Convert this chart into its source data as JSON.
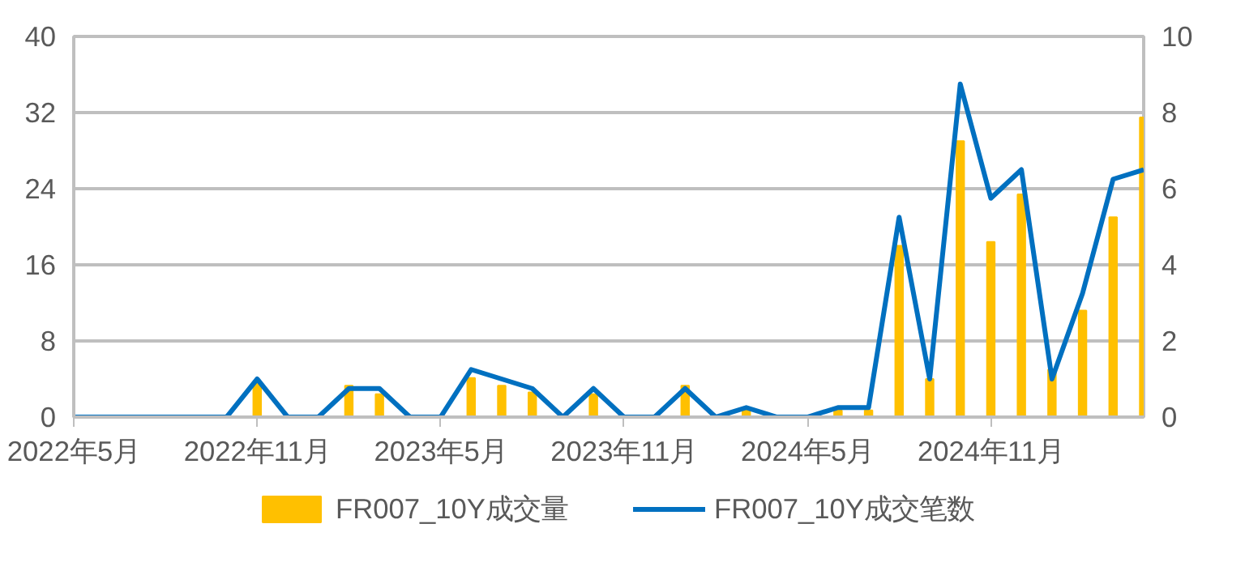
{
  "chart_data": {
    "type": "bar",
    "categories": [
      "2022年5月",
      null,
      null,
      null,
      null,
      null,
      "2022年11月",
      null,
      null,
      null,
      null,
      null,
      "2023年5月",
      null,
      null,
      null,
      null,
      null,
      "2023年11月",
      null,
      null,
      null,
      null,
      null,
      "2024年5月",
      null,
      null,
      null,
      null,
      null,
      "2024年11月",
      null,
      null,
      null,
      null,
      null
    ],
    "series": [
      {
        "name": "FR007_10Y成交量",
        "color": "#ffc000",
        "values": [
          0,
          0,
          0,
          0,
          0,
          0,
          3.5,
          0,
          0,
          3.3,
          2.4,
          0,
          0,
          4.1,
          3.3,
          2.6,
          0,
          2.4,
          0,
          0,
          3.3,
          0,
          0.7,
          0,
          0,
          0.7,
          0.7,
          18,
          4,
          29,
          18.4,
          23.4,
          5,
          11.2,
          21,
          31.5
        ]
      },
      {
        "name": "FR007_10Y成交笔数",
        "type": "line",
        "axis": "y2",
        "color": "#0070c0",
        "values": [
          0,
          0,
          0,
          0,
          0,
          0,
          1,
          0,
          0,
          0.75,
          0.75,
          0,
          0,
          1.25,
          1,
          0.75,
          0,
          0.75,
          0,
          0,
          0.75,
          0,
          0.25,
          0,
          0,
          0.25,
          0.25,
          5.25,
          1,
          8.75,
          5.75,
          6.5,
          1,
          3.25,
          6.25,
          6.5
        ]
      }
    ],
    "ylim": [
      0,
      40
    ],
    "yticks": [
      0,
      8,
      16,
      24,
      32,
      40
    ],
    "y2lim": [
      0,
      10
    ],
    "y2ticks": [
      0,
      2,
      4,
      6,
      8,
      10
    ],
    "grid": "y",
    "legend": "bottom",
    "marker": "none",
    "line_style": "solid"
  }
}
